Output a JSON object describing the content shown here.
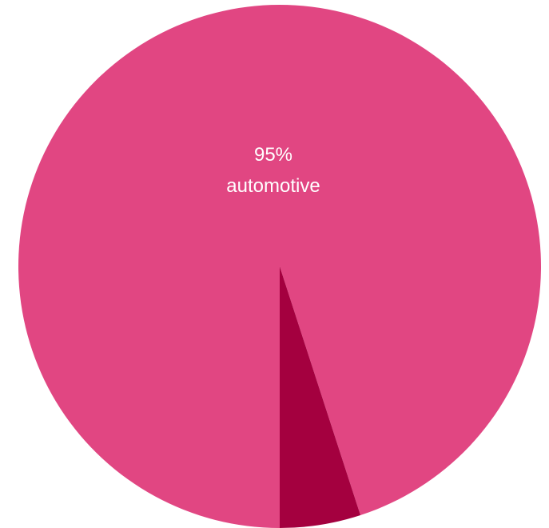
{
  "chart_data": {
    "type": "pie",
    "start_angle_deg": 0,
    "direction": "clockwise",
    "slices": [
      {
        "label": "automotive",
        "value": 95,
        "value_label": "95%",
        "color": "#e14682",
        "show_label": true
      },
      {
        "label": "",
        "value": 5,
        "value_label": "",
        "color": "#a4003f",
        "show_label": false
      }
    ],
    "title": "",
    "legend": "none"
  }
}
